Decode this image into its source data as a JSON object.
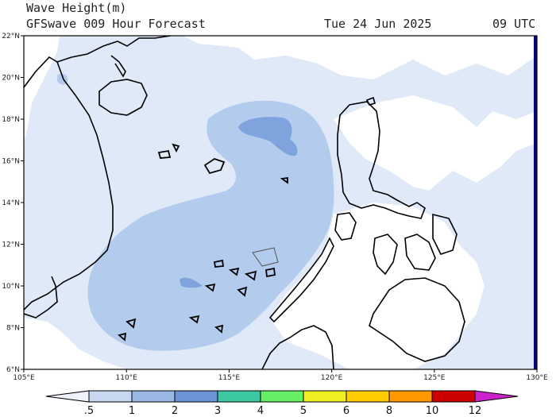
{
  "header": {
    "title": "Wave Height(m)",
    "subtitle": "GFSwave 009 Hour Forecast",
    "date": "Tue 24 Jun 2025",
    "time": "09 UTC"
  },
  "map": {
    "lon_range": [
      105,
      130
    ],
    "lat_range": [
      6,
      22
    ],
    "lon_labels": [
      "105°E",
      "110°E",
      "115°E",
      "120°E",
      "125°E",
      "130°E"
    ],
    "lat_labels": [
      "6°N",
      "8°N",
      "10°N",
      "12°N",
      "14°N",
      "16°N",
      "18°N",
      "20°N",
      "22°N"
    ]
  },
  "colorbar": {
    "labels": [
      ".5",
      "1",
      "2",
      "3",
      "4",
      "5",
      "6",
      "8",
      "10",
      "12"
    ],
    "colors": [
      "#eef3fb",
      "#c8d8f0",
      "#9ab8e3",
      "#6b93d6",
      "#3cc8a0",
      "#66ee66",
      "#eeee22",
      "#ffcc00",
      "#ff9900",
      "#ff5555",
      "#cc0000",
      "#cc22cc"
    ]
  }
}
